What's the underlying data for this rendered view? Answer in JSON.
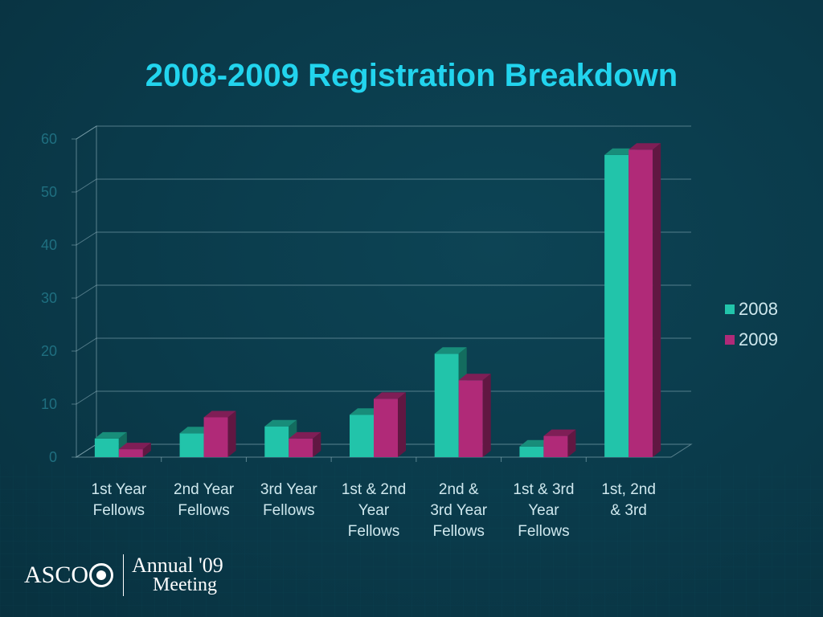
{
  "slide": {
    "title": "2008-2009 Registration Breakdown",
    "logo": {
      "brand": "ASCO",
      "line1": "Annual '09",
      "line2": "Meeting"
    }
  },
  "colors": {
    "background": "#0a3a4a",
    "title": "#22d4ee",
    "series_2008": "#22c4aa",
    "series_2009": "#b02a78",
    "grid": "#8fb3bd"
  },
  "chart_data": {
    "type": "bar",
    "title": "2008-2009 Registration Breakdown",
    "style": "3d-clustered-column",
    "categories": [
      [
        "1st Year",
        "Fellows"
      ],
      [
        "2nd Year",
        "Fellows"
      ],
      [
        "3rd Year",
        "Fellows"
      ],
      [
        "1st & 2nd",
        "Year",
        "Fellows"
      ],
      [
        "2nd &",
        "3rd Year",
        "Fellows"
      ],
      [
        "1st & 3rd",
        "Year",
        "Fellows"
      ],
      [
        "1st, 2nd",
        "& 3rd"
      ]
    ],
    "series": [
      {
        "name": "2008",
        "values": [
          3.5,
          4.5,
          5.8,
          8,
          19.5,
          2,
          57
        ]
      },
      {
        "name": "2009",
        "values": [
          1.5,
          7.5,
          3.5,
          11,
          14.5,
          4,
          58
        ]
      }
    ],
    "ylim": [
      0,
      60
    ],
    "yticks": [
      "0",
      "10",
      "20",
      "30",
      "40",
      "50",
      "60"
    ],
    "grid": true,
    "legend": "right"
  }
}
